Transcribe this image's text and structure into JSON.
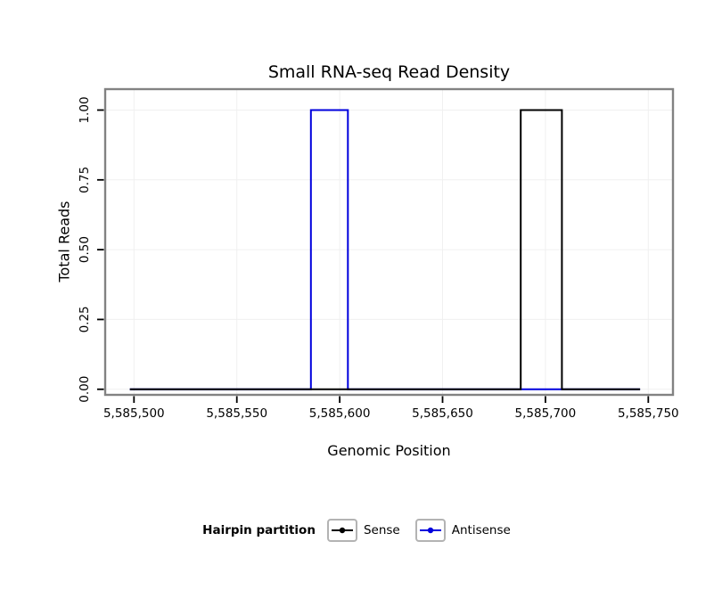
{
  "chart_data": {
    "type": "line",
    "title": "Small RNA-seq Read Density",
    "xlabel": "Genomic Position",
    "ylabel": "Total Reads",
    "x_ticks": [
      5585500,
      5585550,
      5585600,
      5585650,
      5585700,
      5585750
    ],
    "x_tick_labels": [
      "5,585,500",
      "5,585,550",
      "5,585,600",
      "5,585,650",
      "5,585,700",
      "5,585,750"
    ],
    "y_ticks": [
      0,
      0.25,
      0.5,
      0.75,
      1
    ],
    "y_tick_labels": [
      "0.00",
      "0.25",
      "0.50",
      "0.75",
      "1.00"
    ],
    "x_range": [
      5585486,
      5585762
    ],
    "y_range": [
      -0.02,
      1.075
    ],
    "grid": true,
    "series": [
      {
        "name": "Antisense",
        "color": "#0000dd",
        "points": [
          [
            5585498,
            0
          ],
          [
            5585586,
            0
          ],
          [
            5585586,
            1
          ],
          [
            5585604,
            1
          ],
          [
            5585604,
            0
          ],
          [
            5585746,
            0
          ]
        ]
      },
      {
        "name": "Sense",
        "color": "#000000",
        "points": [
          [
            5585498,
            0
          ],
          [
            5585688,
            0
          ],
          [
            5585688,
            1
          ],
          [
            5585708,
            1
          ],
          [
            5585708,
            0
          ],
          [
            5585746,
            0
          ]
        ]
      }
    ],
    "legend": {
      "title": "Hairpin partition",
      "position": "bottom",
      "entries": [
        {
          "label": "Sense",
          "color": "#000000"
        },
        {
          "label": "Antisense",
          "color": "#0000dd"
        }
      ]
    }
  }
}
